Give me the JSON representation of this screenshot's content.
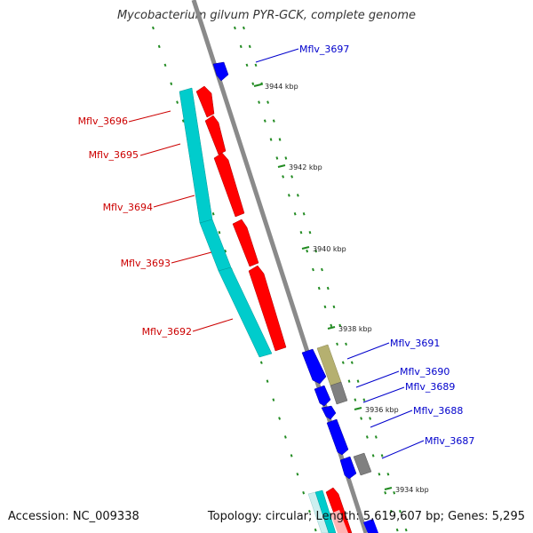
{
  "title": "Mycobacterium gilvum PYR-GCK, complete genome",
  "footer": {
    "accession": "Accession: NC_009338",
    "stats": "Topology: circular; Length: 5,619,607 bp; Genes: 5,295"
  },
  "colors": {
    "backbone": "#8a8a8a",
    "forward_cds": "#ff0000",
    "reverse_cds": "#0000ff",
    "forward_rna": "#00cccc",
    "other_feature": "#808080",
    "tan_feature": "#b5b070",
    "tick": "#228b22",
    "forward_label": "#cc0000",
    "reverse_label": "#0000cc"
  },
  "kbp_ticks": [
    "3944 kbp",
    "3942 kbp",
    "3940 kbp",
    "3938 kbp",
    "3936 kbp",
    "3934 kbp"
  ],
  "forward_genes": [
    {
      "name": "Mflv_3696"
    },
    {
      "name": "Mflv_3695"
    },
    {
      "name": "Mflv_3694"
    },
    {
      "name": "Mflv_3693"
    },
    {
      "name": "Mflv_3692"
    }
  ],
  "reverse_genes": [
    {
      "name": "Mflv_3697"
    },
    {
      "name": "Mflv_3691"
    },
    {
      "name": "Mflv_3690"
    },
    {
      "name": "Mflv_3689"
    },
    {
      "name": "Mflv_3688"
    },
    {
      "name": "Mflv_3687"
    }
  ]
}
